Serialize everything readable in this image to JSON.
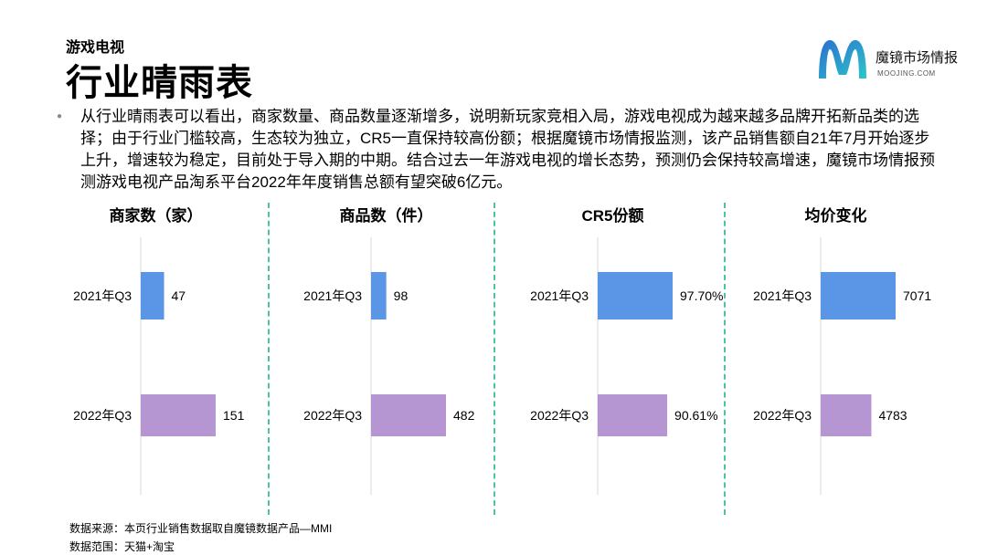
{
  "header": {
    "subtitle": "游戏电视",
    "title": "行业晴雨表"
  },
  "logo": {
    "name": "魔镜市场情报",
    "sub": "MOOJING.COM",
    "icon": "moojing-m-logo-icon",
    "color_start": "#2a6fd0",
    "color_end": "#2ec6c8"
  },
  "description": "从行业晴雨表可以看出，商家数量、商品数量逐渐增多，说明新玩家竞相入局，游戏电视成为越来越多品牌开拓新品类的选择；由于行业门槛较高，生态较为独立，CR5一直保持较高份额；根据魔镜市场情报监测，该产品销售额自21年7月开始逐步上升，增速较为稳定，目前处于导入期的中期。结合过去一年游戏电视的增长态势，预测仍会保持较高增速，魔镜市场情报预测游戏电视产品淘系平台2022年年度销售总额有望突破6亿元。",
  "colors": {
    "series_2021": "#5b95e5",
    "series_2022": "#b695d3",
    "divider": "#4cc3a6"
  },
  "chart_data": [
    {
      "type": "bar",
      "title": "商家数（家）",
      "categories": [
        "2021年Q3",
        "2022年Q3"
      ],
      "values": [
        47,
        151
      ],
      "labels": [
        "47",
        "151"
      ]
    },
    {
      "type": "bar",
      "title": "商品数（件）",
      "categories": [
        "2021年Q3",
        "2022年Q3"
      ],
      "values": [
        98,
        482
      ],
      "labels": [
        "98",
        "482"
      ]
    },
    {
      "type": "bar",
      "title": "CR5份额",
      "categories": [
        "2021年Q3",
        "2022年Q3"
      ],
      "values": [
        97.7,
        90.61
      ],
      "labels": [
        "97.70%",
        "90.61%"
      ]
    },
    {
      "type": "bar",
      "title": "均价变化",
      "categories": [
        "2021年Q3",
        "2022年Q3"
      ],
      "values": [
        7071,
        4783
      ],
      "labels": [
        "7071",
        "4783"
      ]
    }
  ],
  "footer": {
    "source": "数据来源：本页行业销售数据取自魔镜数据产品—MMI",
    "scope": "数据范围：天猫+淘宝"
  }
}
